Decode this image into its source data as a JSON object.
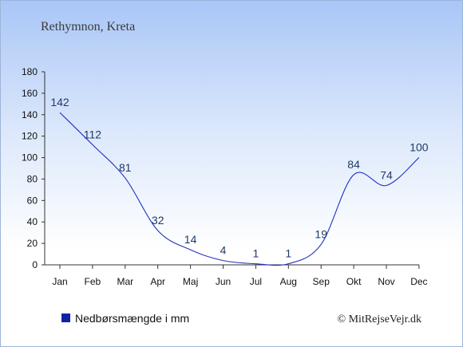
{
  "chart_data": {
    "type": "line",
    "title": "Rethymnon, Kreta",
    "categories": [
      "Jan",
      "Feb",
      "Mar",
      "Apr",
      "Maj",
      "Jun",
      "Jul",
      "Aug",
      "Sep",
      "Okt",
      "Nov",
      "Dec"
    ],
    "series": [
      {
        "name": "Nedbørsmængde i mm",
        "values": [
          142,
          112,
          81,
          32,
          14,
          4,
          1,
          1,
          19,
          84,
          74,
          100
        ]
      }
    ],
    "ylim": [
      0,
      180
    ],
    "yticks": [
      0,
      20,
      40,
      60,
      80,
      100,
      120,
      140,
      160,
      180
    ],
    "line_color": "#2233bb",
    "legend_color": "#1122aa",
    "legend_position": "bottom-left"
  },
  "credit": "© MitRejseVejr.dk"
}
